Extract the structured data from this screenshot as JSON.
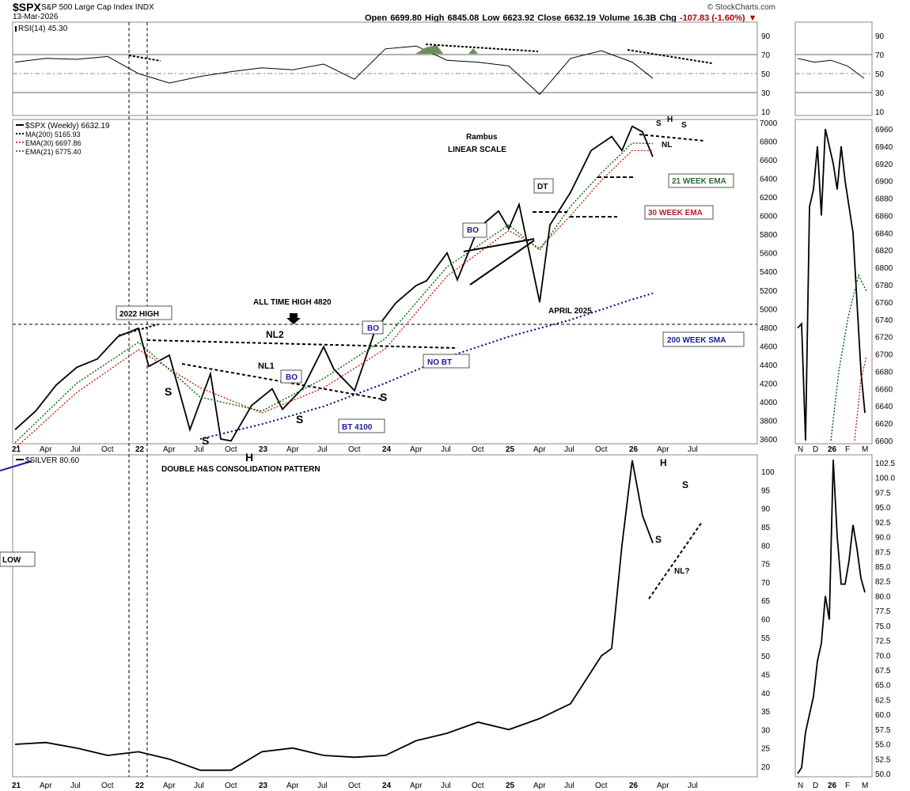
{
  "header": {
    "symbol": "$SPX",
    "name": "S&P 500 Large Cap Index  INDX",
    "date": "13-Mar-2026",
    "brand": "© StockCharts.com",
    "open_label": "Open",
    "open": "6699.80",
    "high_label": "High",
    "high": "6845.08",
    "low_label": "Low",
    "low": "6623.92",
    "close_label": "Close",
    "close": "6632.19",
    "volume_label": "Volume",
    "volume": "16.3B",
    "chg_label": "Chg",
    "chg": "-107.83 (-1.60%)"
  },
  "colors": {
    "price": "#000000",
    "ma200": "#00008b",
    "ema30": "#cc0000",
    "ema21": "#006400",
    "rsi_fill": "#6b8f5a",
    "label_red": "#b22222",
    "label_green": "#2e6b2e",
    "label_blue": "#1a1aa0"
  },
  "chart_data": [
    {
      "id": "rsi",
      "type": "line",
      "title": "RSI(14) 45.30",
      "y_ticks": [
        90,
        70,
        50,
        30,
        10
      ],
      "ylim": [
        0,
        100
      ],
      "reference_lines": [
        70,
        50,
        30
      ],
      "x": [
        "2021-01",
        "2021-04",
        "2021-07",
        "2021-10",
        "2022-01",
        "2022-04",
        "2022-07",
        "2022-10",
        "2023-01",
        "2023-04",
        "2023-07",
        "2023-10",
        "2024-01",
        "2024-04",
        "2024-07",
        "2024-10",
        "2025-01",
        "2025-04",
        "2025-07",
        "2025-10",
        "2026-01",
        "2026-03"
      ],
      "values": [
        62,
        66,
        65,
        68,
        50,
        40,
        47,
        52,
        56,
        54,
        60,
        44,
        76,
        79,
        64,
        62,
        58,
        28,
        66,
        74,
        62,
        45
      ],
      "detail": {
        "x": [
          "N",
          "D",
          "26",
          "F",
          "M"
        ],
        "values": [
          66,
          62,
          64,
          58,
          45
        ]
      }
    },
    {
      "id": "spx",
      "type": "line",
      "title": "$SPX (Weekly) 6632.19",
      "scale": "linear",
      "ylim": [
        3550,
        7050
      ],
      "y_ticks": [
        3600,
        3800,
        4000,
        4200,
        4400,
        4600,
        4800,
        5000,
        5200,
        5400,
        5600,
        5800,
        6000,
        6200,
        6400,
        6600,
        6800,
        7000
      ],
      "x_ticks": [
        "21",
        "Apr",
        "Jul",
        "Oct",
        "22",
        "Apr",
        "Jul",
        "Oct",
        "23",
        "Apr",
        "Jul",
        "Oct",
        "24",
        "Apr",
        "Jul",
        "Oct",
        "25",
        "Apr",
        "Jul",
        "Oct",
        "26",
        "Apr",
        "Jul"
      ],
      "legend": [
        "$SPX (Weekly) 6632.19",
        "MA(200) 5165.93",
        "EMA(30) 6697.86",
        "EMA(21) 6775.40"
      ],
      "series": [
        {
          "name": "$SPX (Weekly) 6632.19",
          "x": [
            "2021-01",
            "2021-03",
            "2021-05",
            "2021-07",
            "2021-09",
            "2021-11",
            "2022-01",
            "2022-02",
            "2022-04",
            "2022-06",
            "2022-08",
            "2022-09",
            "2022-10",
            "2022-12",
            "2023-02",
            "2023-03",
            "2023-05",
            "2023-07",
            "2023-08",
            "2023-10",
            "2023-12",
            "2024-02",
            "2024-04",
            "2024-05",
            "2024-07",
            "2024-08",
            "2024-10",
            "2024-12",
            "2025-01",
            "2025-02",
            "2025-04",
            "2025-05",
            "2025-07",
            "2025-09",
            "2025-11",
            "2025-12",
            "2026-01",
            "2026-02",
            "2026-03"
          ],
          "values": [
            3700,
            3900,
            4180,
            4370,
            4460,
            4700,
            4790,
            4380,
            4500,
            3700,
            4300,
            3600,
            3580,
            3960,
            4140,
            3920,
            4150,
            4590,
            4350,
            4120,
            4770,
            5060,
            5250,
            5300,
            5600,
            5310,
            5860,
            6050,
            5860,
            6120,
            5070,
            5900,
            6250,
            6700,
            6850,
            6700,
            6960,
            6900,
            6632
          ]
        },
        {
          "name": "MA(200) 5165.93",
          "x": [
            "2022-07",
            "2023-01",
            "2023-07",
            "2024-01",
            "2024-07",
            "2025-01",
            "2025-07",
            "2026-01",
            "2026-03"
          ],
          "values": [
            3600,
            3760,
            3950,
            4200,
            4480,
            4700,
            4880,
            5100,
            5166
          ]
        },
        {
          "name": "EMA(30) 6697.86",
          "x": [
            "2021-01",
            "2021-07",
            "2022-01",
            "2022-07",
            "2023-01",
            "2023-07",
            "2024-01",
            "2024-07",
            "2025-01",
            "2025-04",
            "2025-07",
            "2025-10",
            "2026-01",
            "2026-03"
          ],
          "values": [
            3500,
            4100,
            4560,
            4150,
            3880,
            4150,
            4570,
            5350,
            5840,
            5650,
            6000,
            6380,
            6700,
            6698
          ]
        },
        {
          "name": "EMA(21) 6775.40",
          "x": [
            "2021-01",
            "2021-07",
            "2022-01",
            "2022-07",
            "2023-01",
            "2023-07",
            "2024-01",
            "2024-07",
            "2025-01",
            "2025-04",
            "2025-07",
            "2025-10",
            "2026-01",
            "2026-03"
          ],
          "values": [
            3560,
            4200,
            4640,
            4050,
            3900,
            4250,
            4680,
            5450,
            5900,
            5630,
            6100,
            6460,
            6780,
            6775
          ]
        }
      ],
      "detail": {
        "x_ticks": [
          "N",
          "D",
          "26",
          "F",
          "M"
        ],
        "y_ticks": [
          6960,
          6940,
          6920,
          6900,
          6880,
          6860,
          6840,
          6820,
          6800,
          6780,
          6760,
          6740,
          6720,
          6700,
          6680,
          6660,
          6640,
          6620,
          6600
        ],
        "ylim": [
          6600,
          6970
        ],
        "values": [
          6730,
          6735,
          6600,
          6870,
          6890,
          6940,
          6860,
          6960,
          6940,
          6920,
          6890,
          6940,
          6900,
          6870,
          6840,
          6760,
          6680,
          6632
        ]
      }
    },
    {
      "id": "silver",
      "type": "line",
      "title": "$SILVER 80.60",
      "ylim": [
        17,
        105
      ],
      "y_ticks": [
        100,
        95,
        90,
        85,
        80,
        75,
        70,
        65,
        60,
        55,
        50,
        45,
        40,
        35,
        30,
        25,
        20
      ],
      "series": [
        {
          "name": "$SILVER 80.60",
          "x": [
            "2021-01",
            "2021-04",
            "2021-07",
            "2021-10",
            "2022-01",
            "2022-04",
            "2022-07",
            "2022-10",
            "2023-01",
            "2023-04",
            "2023-07",
            "2023-10",
            "2024-01",
            "2024-04",
            "2024-07",
            "2024-10",
            "2025-01",
            "2025-04",
            "2025-07",
            "2025-10",
            "2025-11",
            "2025-12",
            "2026-01",
            "2026-02",
            "2026-03"
          ],
          "values": [
            26,
            26.5,
            25,
            23,
            24,
            22,
            19,
            19,
            24,
            25,
            23,
            22.5,
            23,
            27,
            29,
            32,
            30,
            33,
            37,
            50,
            52,
            80,
            103,
            88,
            80.6
          ]
        }
      ],
      "detail": {
        "x_ticks": [
          "N",
          "D",
          "26",
          "F",
          "M"
        ],
        "y_ticks": [
          102.5,
          100.0,
          97.5,
          95.0,
          92.5,
          90.0,
          87.5,
          85.0,
          82.5,
          80.0,
          77.5,
          75.0,
          72.5,
          70.0,
          67.5,
          65.0,
          62.5,
          60.0,
          57.5,
          55.0,
          52.5,
          50.0
        ],
        "ylim": [
          49.5,
          103.5
        ],
        "values": [
          50,
          51,
          57,
          60,
          63,
          69,
          72,
          80,
          76,
          103,
          90,
          82,
          82,
          86,
          92,
          88,
          83,
          80.6
        ]
      }
    }
  ],
  "annotations": {
    "rambus": "Rambus",
    "linear_scale": "LINEAR SCALE",
    "high_2022": "2022 HIGH",
    "ath": "ALL TIME HIGH 4820",
    "nl2": "NL2",
    "nl1": "NL1",
    "bo1": "BO",
    "bo2": "BO",
    "bo3": "BO",
    "no_bt": "NO BT",
    "bt4100": "BT 4100",
    "dt": "DT",
    "april2025": "APRIL 2025",
    "ema21": "21 WEEK EMA",
    "ema30": "30 WEEK EMA",
    "sma200": "200 WEEK SMA",
    "s": "S",
    "h": "H",
    "nl": "NL",
    "low": "LOW",
    "double_hs": "DOUBLE H&S CONSOLIDATION PATTERN",
    "nl_q": "NL?"
  }
}
